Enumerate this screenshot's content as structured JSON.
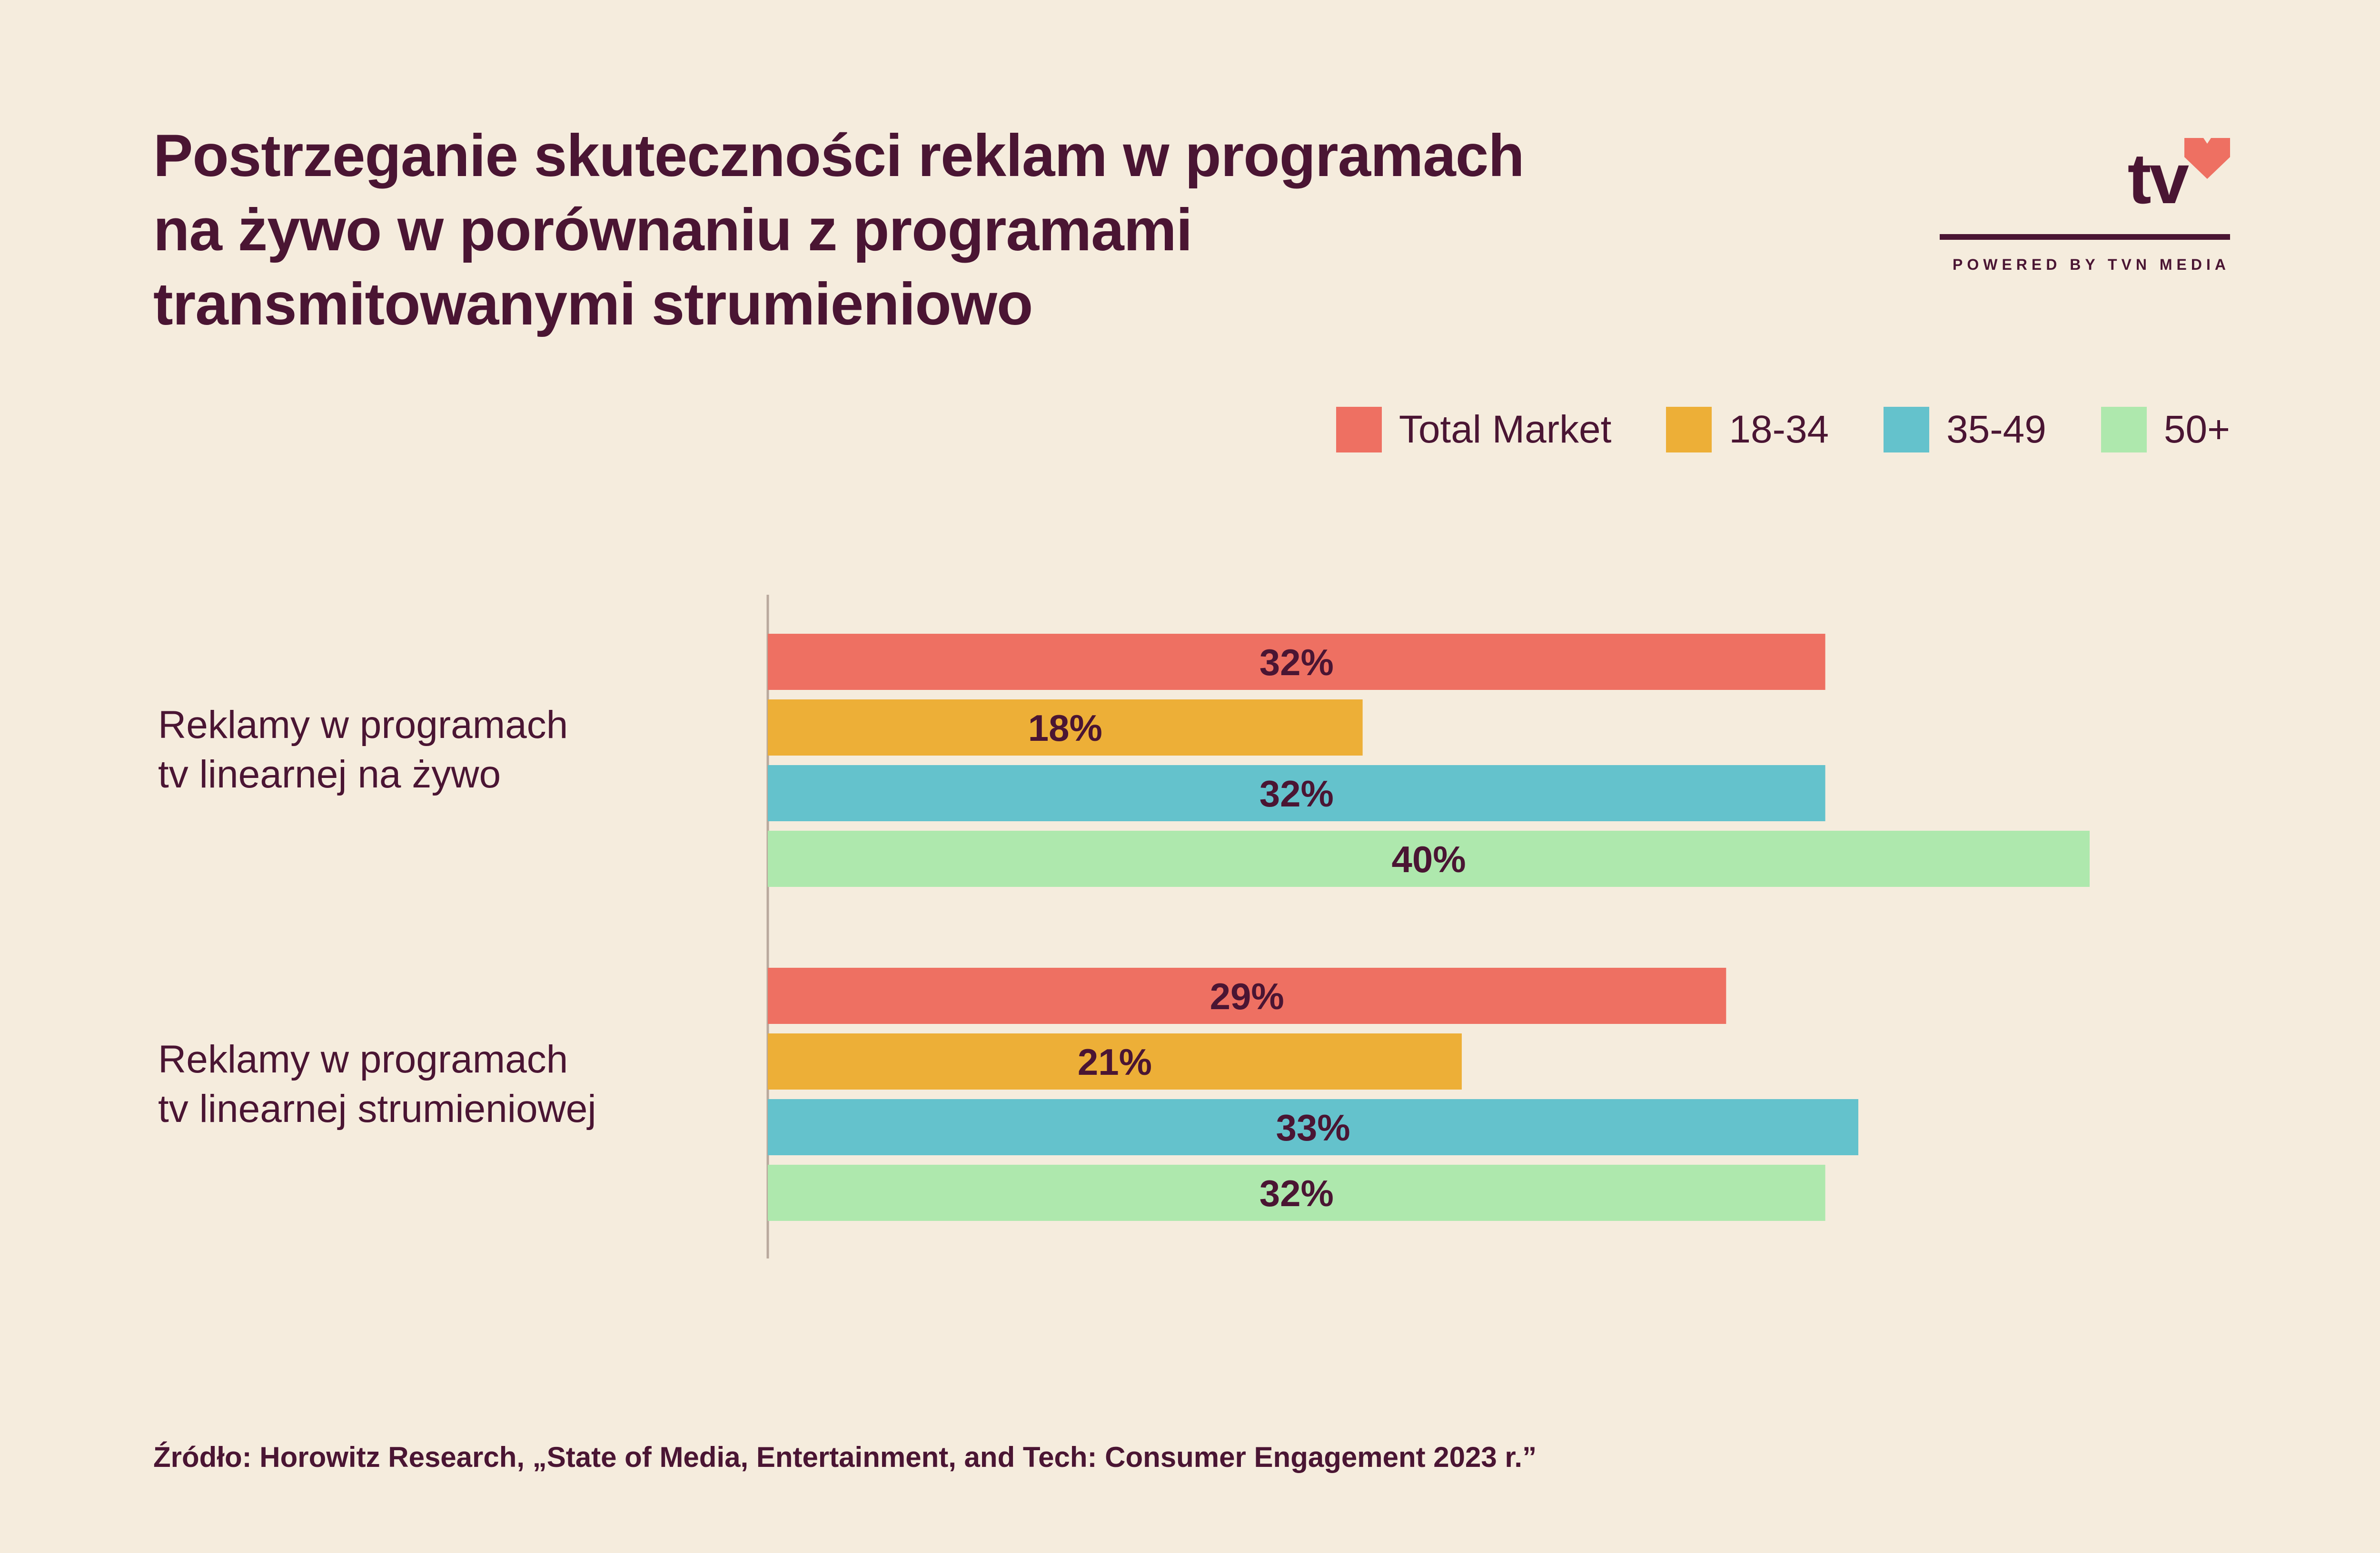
{
  "title_lines": [
    "Postrzeganie skuteczności reklam w programach",
    "na żywo w porównaniu z programami",
    "transmitowanymi strumieniowo"
  ],
  "logo": {
    "text": "tv",
    "tagline": "POWERED BY TVN MEDIA",
    "heart_color": "#EE7062"
  },
  "source": "Źródło: Horowitz Research, „State of Media, Entertainment, and Tech: Consumer Engagement 2023 r.”",
  "chart_data": {
    "type": "bar",
    "orientation": "horizontal",
    "categories": [
      [
        "Reklamy w programach",
        "tv linearnej na żywo"
      ],
      [
        "Reklamy w programach",
        "tv linearnej strumieniowej"
      ]
    ],
    "series": [
      {
        "name": "Total Market",
        "color": "#EE7062",
        "values": [
          32,
          29
        ]
      },
      {
        "name": "18-34",
        "color": "#EDAF37",
        "values": [
          18,
          21
        ]
      },
      {
        "name": "35-49",
        "color": "#64C2CC",
        "values": [
          32,
          33
        ]
      },
      {
        "name": "50+",
        "color": "#AEE8AD",
        "values": [
          40,
          32
        ]
      }
    ],
    "value_suffix": "%",
    "legend_position": "top-right",
    "xlim": [
      0,
      44
    ],
    "grid": false
  }
}
